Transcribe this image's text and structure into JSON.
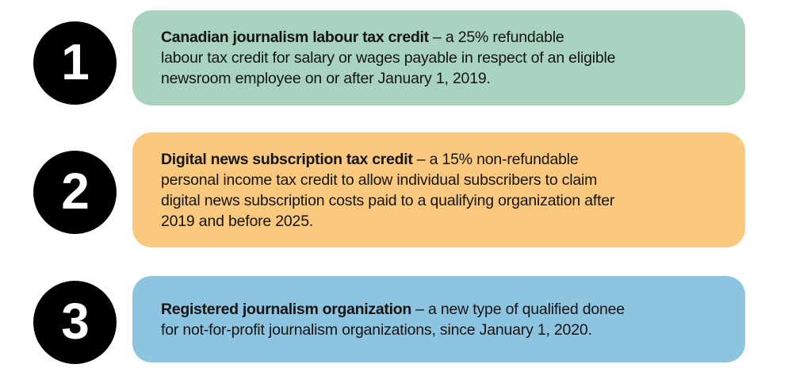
{
  "page": {
    "background": "#ffffff",
    "text_color": "#141414"
  },
  "badge": {
    "background": "#000000",
    "text_color": "#ffffff"
  },
  "items": [
    {
      "number": "1",
      "color": "#a8d3bf",
      "title": "Canadian journalism labour tax credit",
      "lines": [
        "– a 25% refundable",
        "labour tax credit for salary or wages payable in respect of an eligible",
        "newsroom employee on or after January 1, 2019."
      ]
    },
    {
      "number": "2",
      "color": "#fbc97e",
      "title": "Digital news subscription tax credit",
      "lines": [
        "– a 15% non-refundable",
        "personal income tax credit to allow individual subscribers to claim",
        "digital news subscription costs paid to a qualifying organization after",
        "2019 and before 2025."
      ]
    },
    {
      "number": "3",
      "color": "#8dc5e0",
      "title": "Registered journalism organization",
      "lines": [
        "– a new type of qualified donee",
        "for not-for-profit journalism organizations, since January 1, 2020."
      ]
    }
  ]
}
